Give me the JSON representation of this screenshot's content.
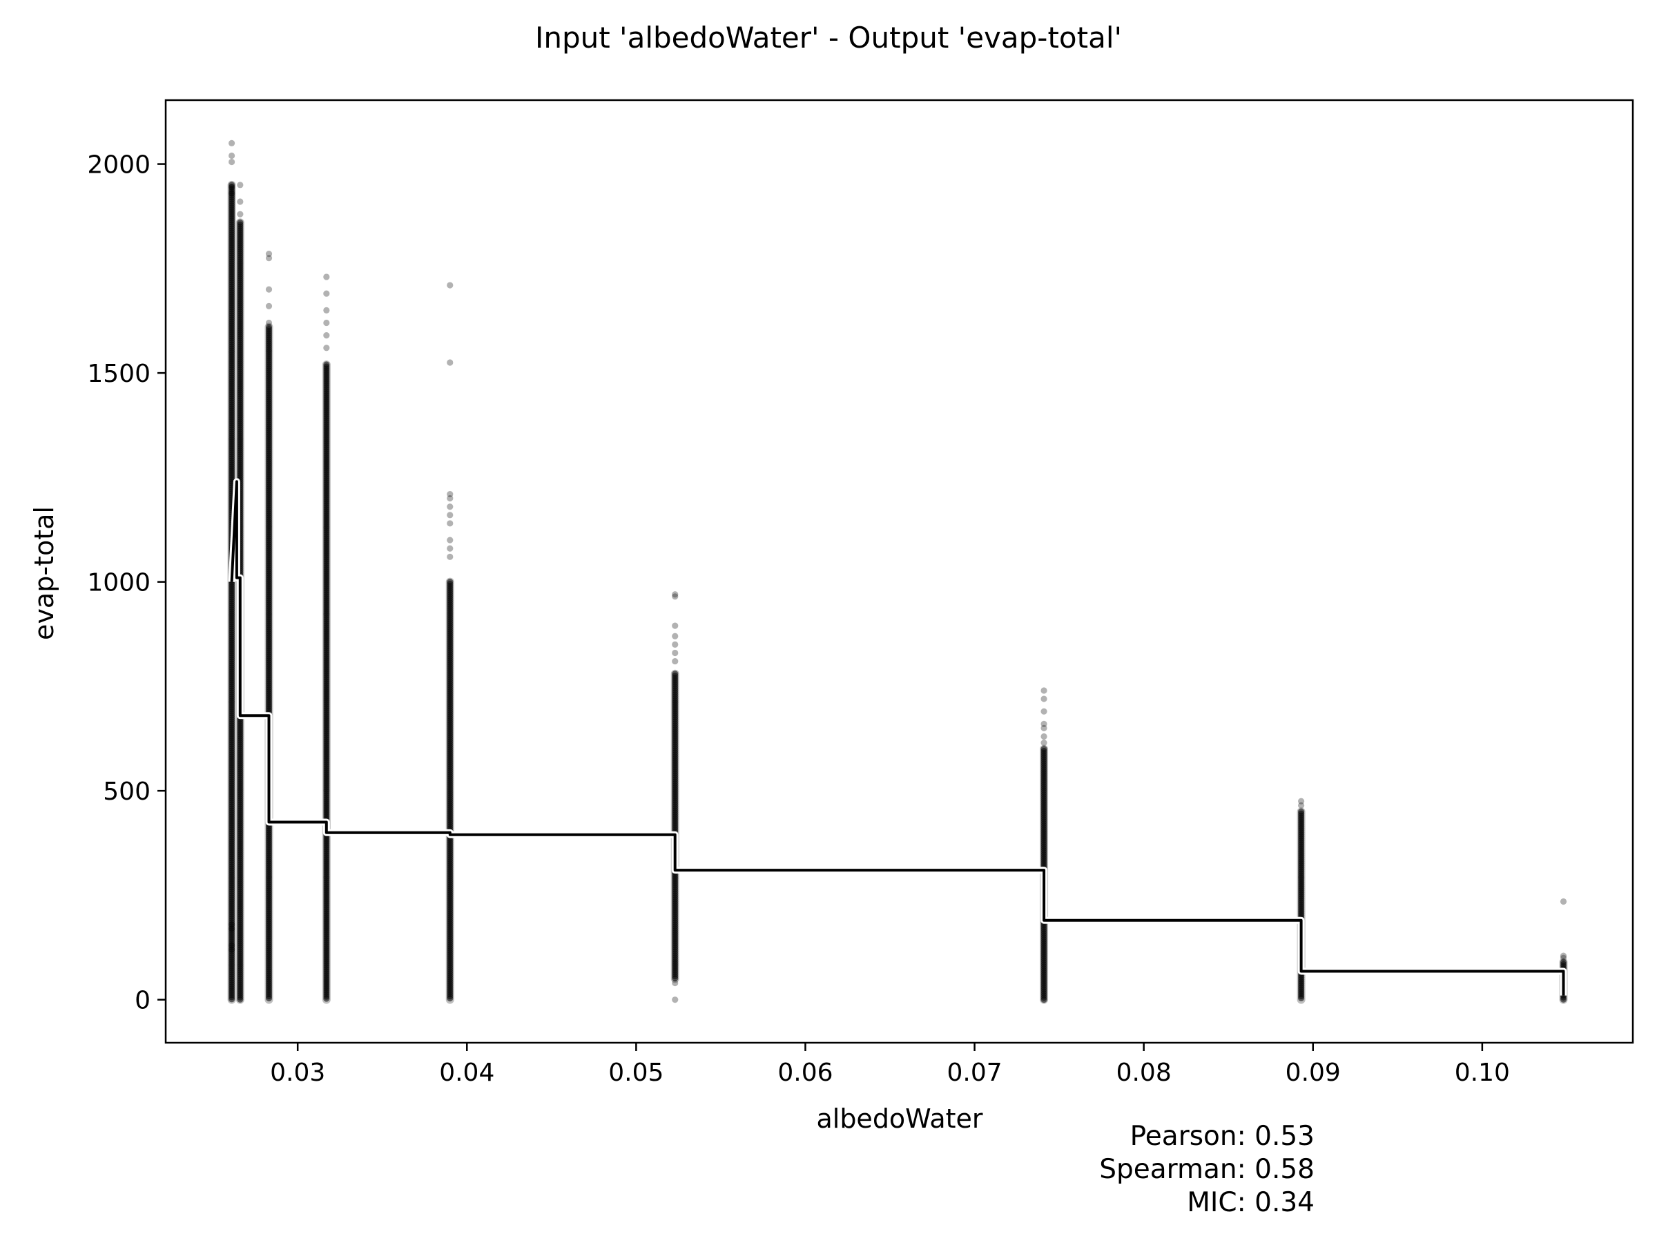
{
  "chart_data": {
    "type": "scatter",
    "title": "Input 'albedoWater' - Output 'evap-total'",
    "xlabel": "albedoWater",
    "ylabel": "evap-total",
    "xlim": [
      0.0222,
      0.1089
    ],
    "ylim": [
      -103,
      2153
    ],
    "xticks": [
      0.03,
      0.04,
      0.05,
      0.06,
      0.07,
      0.08,
      0.09,
      0.1
    ],
    "xtick_labels": [
      "0.03",
      "0.04",
      "0.05",
      "0.06",
      "0.07",
      "0.08",
      "0.09",
      "0.10"
    ],
    "yticks": [
      0,
      500,
      1000,
      1500,
      2000
    ],
    "ytick_labels": [
      "0",
      "500",
      "1000",
      "1500",
      "2000"
    ],
    "grid": false,
    "scatter_columns": [
      {
        "x": 0.0261,
        "ymin": 0,
        "ymax": 1950,
        "outliers": [
          2050,
          2020,
          2005,
          1945,
          1930,
          180,
          170,
          130,
          120
        ]
      },
      {
        "x": 0.0266,
        "ymin": 0,
        "ymax": 1860,
        "outliers": [
          1950,
          1910,
          1880
        ]
      },
      {
        "x": 0.0283,
        "ymin": 0,
        "ymax": 1610,
        "outliers": [
          1785,
          1775,
          1700,
          1660,
          1620
        ]
      },
      {
        "x": 0.0317,
        "ymin": 0,
        "ymax": 1520,
        "outliers": [
          1730,
          1690,
          1650,
          1620,
          1590,
          1560
        ]
      },
      {
        "x": 0.039,
        "ymin": 0,
        "ymax": 1000,
        "outliers": [
          1710,
          1525,
          1210,
          1200,
          1180,
          1160,
          1140,
          1100,
          1080,
          1060
        ]
      },
      {
        "x": 0.0523,
        "ymin": 50,
        "ymax": 780,
        "outliers": [
          970,
          965,
          895,
          870,
          850,
          830,
          810,
          40,
          0
        ]
      },
      {
        "x": 0.0741,
        "ymin": 0,
        "ymax": 600,
        "outliers": [
          740,
          720,
          690,
          660,
          650,
          630,
          615
        ]
      },
      {
        "x": 0.0893,
        "ymin": 0,
        "ymax": 450,
        "outliers": [
          475,
          465
        ]
      },
      {
        "x": 0.1048,
        "ymin": 0,
        "ymax": 90,
        "outliers": [
          235,
          105,
          100
        ]
      }
    ],
    "step_line": {
      "x": [
        0.0261,
        0.0264,
        0.0264,
        0.0266,
        0.0266,
        0.0283,
        0.0283,
        0.0317,
        0.0317,
        0.039,
        0.039,
        0.0523,
        0.0523,
        0.0741,
        0.0741,
        0.0893,
        0.0893,
        0.1048,
        0.1048
      ],
      "y": [
        1000,
        1240,
        1010,
        1010,
        680,
        680,
        425,
        425,
        400,
        400,
        395,
        395,
        310,
        310,
        190,
        190,
        68,
        68,
        10
      ]
    },
    "stats": {
      "pearson_label": "Pearson: 0.53",
      "spearman_label": "Spearman: 0.58",
      "mic_label": "MIC: 0.34"
    }
  }
}
